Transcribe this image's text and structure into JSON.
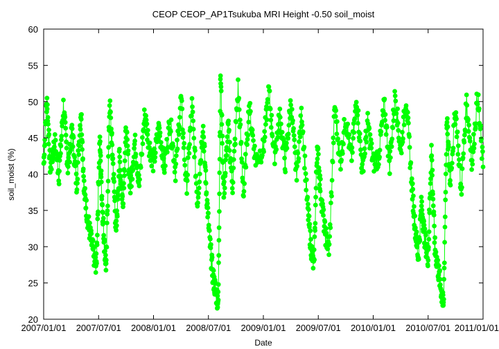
{
  "chart_data": {
    "type": "line",
    "title": "CEOP CEOP_AP1Tsukuba MRI Height -0.50 soil_moist",
    "xlabel": "Date",
    "ylabel": "soil_moist (%)",
    "ylim": [
      20,
      60
    ],
    "y_ticks": [
      20,
      25,
      30,
      35,
      40,
      45,
      50,
      55,
      60
    ],
    "x_ticks": [
      "2007/01/01",
      "2007/07/01",
      "2008/01/01",
      "2008/07/01",
      "2009/01/01",
      "2009/07/01",
      "2010/01/01",
      "2010/07/01",
      "2011/01/01"
    ],
    "x_range_years": [
      2007.0,
      2011.0
    ],
    "grid": false,
    "legend": "none",
    "marker": "filled-circle",
    "series": [
      {
        "name": "soil_moist",
        "color": "#00ff00",
        "x": [
          2007.0,
          2007.03,
          2007.06,
          2007.1,
          2007.14,
          2007.18,
          2007.22,
          2007.26,
          2007.3,
          2007.34,
          2007.37,
          2007.4,
          2007.43,
          2007.46,
          2007.48,
          2007.51,
          2007.53,
          2007.55,
          2007.57,
          2007.6,
          2007.63,
          2007.66,
          2007.69,
          2007.72,
          2007.75,
          2007.79,
          2007.83,
          2007.87,
          2007.92,
          2007.96,
          2008.0,
          2008.05,
          2008.1,
          2008.15,
          2008.2,
          2008.25,
          2008.3,
          2008.35,
          2008.4,
          2008.45,
          2008.48,
          2008.51,
          2008.54,
          2008.57,
          2008.59,
          2008.61,
          2008.64,
          2008.68,
          2008.72,
          2008.77,
          2008.82,
          2008.87,
          2008.93,
          2009.0,
          2009.05,
          2009.1,
          2009.15,
          2009.2,
          2009.25,
          2009.3,
          2009.35,
          2009.4,
          2009.43,
          2009.46,
          2009.49,
          2009.52,
          2009.56,
          2009.6,
          2009.65,
          2009.7,
          2009.75,
          2009.8,
          2009.85,
          2009.9,
          2009.95,
          2010.0,
          2010.05,
          2010.1,
          2010.15,
          2010.2,
          2010.25,
          2010.3,
          2010.35,
          2010.38,
          2010.41,
          2010.44,
          2010.47,
          2010.5,
          2010.53,
          2010.56,
          2010.59,
          2010.62,
          2010.64,
          2010.67,
          2010.7,
          2010.75,
          2010.8,
          2010.85,
          2010.9,
          2010.95,
          2011.0
        ],
        "values": [
          41.5,
          50.5,
          40.5,
          44.5,
          40.0,
          49.5,
          41.0,
          46.0,
          38.5,
          49.0,
          37.5,
          34.0,
          31.0,
          28.5,
          27.5,
          45.0,
          37.0,
          31.0,
          27.0,
          50.0,
          42.0,
          31.5,
          42.5,
          36.0,
          46.0,
          38.0,
          44.5,
          38.5,
          48.5,
          44.0,
          41.5,
          46.5,
          41.0,
          47.5,
          40.5,
          50.5,
          38.0,
          49.5,
          36.0,
          47.0,
          38.0,
          31.0,
          26.0,
          23.5,
          22.5,
          54.0,
          37.0,
          46.5,
          38.5,
          52.0,
          37.0,
          49.5,
          42.0,
          43.5,
          51.5,
          42.5,
          48.0,
          41.5,
          50.0,
          40.0,
          48.5,
          36.0,
          30.5,
          27.0,
          44.0,
          38.0,
          32.0,
          29.5,
          49.5,
          41.5,
          48.0,
          42.0,
          50.5,
          40.5,
          47.0,
          41.5,
          42.5,
          49.5,
          41.5,
          51.0,
          43.0,
          50.5,
          39.0,
          33.0,
          28.5,
          36.0,
          31.0,
          28.5,
          43.5,
          30.0,
          27.0,
          24.0,
          21.5,
          47.5,
          39.0,
          49.0,
          37.5,
          50.0,
          41.5,
          51.0,
          41.0
        ]
      }
    ]
  }
}
